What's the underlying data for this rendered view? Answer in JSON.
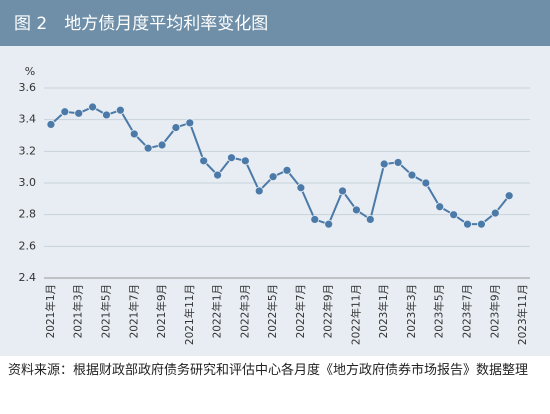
{
  "chart_data": {
    "type": "line",
    "title": "图 2　地方债月度平均利率变化图",
    "ylabel": "%",
    "categories": [
      "2021年1月",
      null,
      "2021年3月",
      null,
      "2021年5月",
      null,
      "2021年7月",
      null,
      "2021年9月",
      null,
      "2021年11月",
      null,
      "2022年1月",
      null,
      "2022年3月",
      null,
      "2022年5月",
      null,
      "2022年7月",
      null,
      "2022年9月",
      null,
      "2022年11月",
      null,
      "2023年1月",
      null,
      "2023年3月",
      null,
      "2023年5月",
      null,
      "2023年7月",
      null,
      "2023年9月",
      null,
      "2023年11月"
    ],
    "series": [
      {
        "color": "#4b79a8",
        "values": [
          3.37,
          3.45,
          3.44,
          3.48,
          3.43,
          3.46,
          3.31,
          3.22,
          3.24,
          3.35,
          3.38,
          3.14,
          3.05,
          3.16,
          3.14,
          2.95,
          3.04,
          3.08,
          2.97,
          2.77,
          2.74,
          2.95,
          2.83,
          2.77,
          3.12,
          3.13,
          3.05,
          3.0,
          2.85,
          2.8,
          2.74,
          2.74,
          2.81,
          2.92,
          null
        ]
      }
    ],
    "ylim": [
      2.4,
      3.6
    ],
    "yticks": [
      2.4,
      2.6,
      2.8,
      {
        "value": 3,
        "label": "3.0"
      },
      3.2,
      3.4,
      3.6
    ],
    "grid": true,
    "note": "资料来源：根据财政部政府债务研究和评估中心各月度《地方政府债券市场报告》数据整理"
  }
}
